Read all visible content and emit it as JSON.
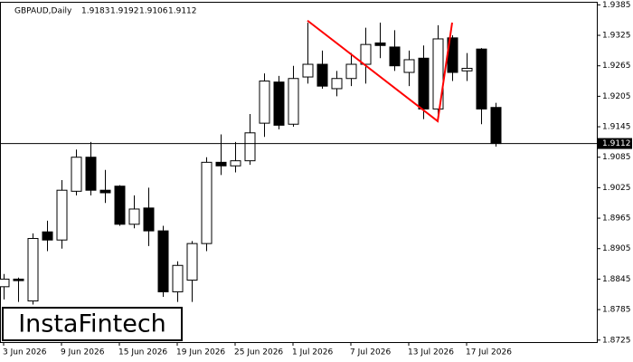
{
  "chart_data": {
    "type": "candlestick",
    "title": "GBPAUD,Daily",
    "categories": [
      "3 Jun 2026",
      null,
      null,
      null,
      "9 Jun 2026",
      null,
      null,
      null,
      "15 Jun 2026",
      null,
      null,
      null,
      "19 Jun 2026",
      null,
      null,
      null,
      "25 Jun 2026",
      null,
      null,
      null,
      "1 Jul 2026",
      null,
      null,
      null,
      "7 Jul 2026",
      null,
      null,
      null,
      "13 Jul 2026",
      null,
      null,
      null,
      "17 Jul 2026",
      null,
      null
    ],
    "open": [
      1.883,
      1.8845,
      1.8802,
      1.8938,
      1.8922,
      1.9018,
      1.9085,
      1.902,
      1.9028,
      1.8953,
      1.8985,
      1.894,
      1.882,
      1.8843,
      1.8915,
      1.9075,
      1.9068,
      1.9078,
      1.9152,
      1.9233,
      1.915,
      1.9243,
      1.9268,
      1.922,
      1.924,
      1.9268,
      1.931,
      1.9302,
      1.9252,
      1.928,
      1.918,
      1.932,
      1.9255,
      1.9298,
      1.9183
    ],
    "high": [
      1.8855,
      1.8848,
      1.8935,
      1.896,
      1.904,
      1.91,
      1.9115,
      1.906,
      1.903,
      1.901,
      1.9025,
      1.895,
      1.888,
      1.892,
      1.9085,
      1.913,
      1.9115,
      1.917,
      1.925,
      1.9245,
      1.9265,
      1.935,
      1.9295,
      1.9255,
      1.929,
      1.934,
      1.935,
      1.9335,
      1.9295,
      1.9305,
      1.9345,
      1.9325,
      1.929,
      1.93,
      1.9192
    ],
    "low": [
      1.8805,
      1.88,
      1.8795,
      1.89,
      1.8905,
      1.901,
      1.901,
      1.8995,
      1.895,
      1.8945,
      1.891,
      1.881,
      1.88,
      1.88,
      1.89,
      1.905,
      1.9055,
      1.907,
      1.9125,
      1.914,
      1.9145,
      1.923,
      1.922,
      1.9205,
      1.9225,
      1.923,
      1.928,
      1.9255,
      1.9225,
      1.916,
      1.916,
      1.9235,
      1.9235,
      1.915,
      1.9106
    ],
    "close": [
      1.8845,
      1.8842,
      1.8925,
      1.8922,
      1.902,
      1.9085,
      1.902,
      1.9015,
      1.8953,
      1.8983,
      1.894,
      1.882,
      1.8872,
      1.8915,
      1.9075,
      1.9068,
      1.9078,
      1.9133,
      1.9235,
      1.9148,
      1.924,
      1.9268,
      1.9225,
      1.924,
      1.9268,
      1.9307,
      1.9305,
      1.9265,
      1.9277,
      1.918,
      1.9318,
      1.9252,
      1.926,
      1.918,
      1.9112
    ],
    "up_color": "#ffffff",
    "down_color": "#000000",
    "ylim": [
      1.8721,
      1.9391
    ],
    "yticks": [
      1.9385,
      1.9325,
      1.9265,
      1.9205,
      1.9145,
      1.9085,
      1.9025,
      1.8965,
      1.8905,
      1.8845,
      1.8785,
      1.8725
    ],
    "current_price": 1.9112,
    "pattern": {
      "color": "#ff0000",
      "x": [
        21,
        30,
        31
      ],
      "values": [
        1.9354,
        1.9156,
        1.935
      ]
    },
    "watermark": "InstaFintech"
  }
}
